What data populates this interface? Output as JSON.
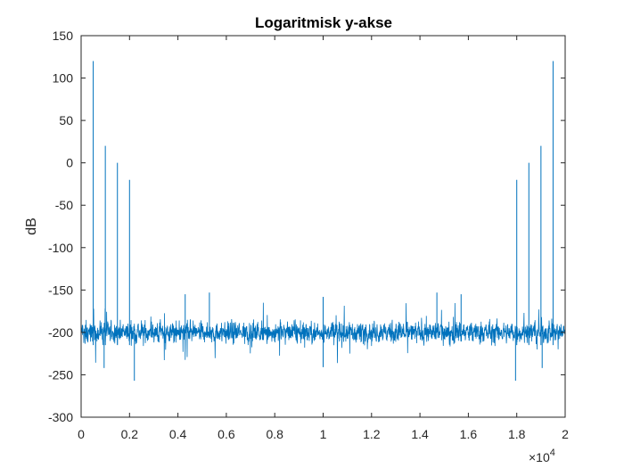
{
  "chart_data": {
    "type": "line",
    "title": "Logaritmisk y-akse",
    "xlabel": "",
    "ylabel": "dB",
    "xlim": [
      0,
      20000
    ],
    "ylim": [
      -300,
      150
    ],
    "x_tick_values": [
      0,
      2000,
      4000,
      6000,
      8000,
      10000,
      12000,
      14000,
      16000,
      18000,
      20000
    ],
    "x_tick_labels": [
      "0",
      "0.2",
      "0.4",
      "0.6",
      "0.8",
      "1",
      "1.2",
      "1.4",
      "1.6",
      "1.8",
      "2"
    ],
    "x_exponent_base": "×10",
    "x_exponent_power": "4",
    "y_ticks": [
      150,
      100,
      50,
      0,
      -50,
      -100,
      -150,
      -200,
      -250,
      -300
    ],
    "grid": false,
    "line_color": "#0072BD",
    "noise_floor_db": -200,
    "series": [
      {
        "peaks": [
          {
            "x": 500,
            "y": 120
          },
          {
            "x": 1000,
            "y": 20
          },
          {
            "x": 1500,
            "y": 0
          },
          {
            "x": 2000,
            "y": -20
          },
          {
            "x": 18000,
            "y": -20
          },
          {
            "x": 18500,
            "y": 0
          },
          {
            "x": 19000,
            "y": 20
          },
          {
            "x": 19500,
            "y": 120
          }
        ],
        "notable_points": [
          {
            "x": 2200,
            "y": -257
          },
          {
            "x": 17950,
            "y": -257
          },
          {
            "x": 950,
            "y": -242
          },
          {
            "x": 19050,
            "y": -242
          },
          {
            "x": 10000,
            "y": -158
          },
          {
            "x": 10000,
            "y": -241
          },
          {
            "x": 5300,
            "y": -153
          },
          {
            "x": 4300,
            "y": -155
          },
          {
            "x": 15700,
            "y": -155
          },
          {
            "x": 14700,
            "y": -153
          }
        ]
      }
    ]
  }
}
